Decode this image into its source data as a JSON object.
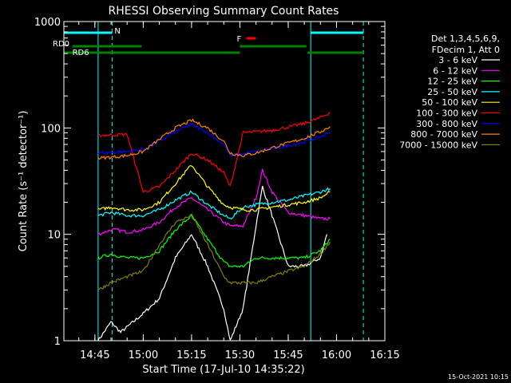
{
  "chart_data": {
    "type": "line",
    "title": "RHESSI Observing Summary Count Rates",
    "xlabel": "Start Time (17-Jul-10 14:35:22)",
    "ylabel": "Count Rate (s⁻¹ detector⁻¹)",
    "x_scale": "time",
    "x_range": [
      "14:35:22",
      "16:15:00"
    ],
    "y_scale": "log",
    "ylim": [
      1,
      1000
    ],
    "x_ticks": [
      "14:45",
      "15:00",
      "15:15",
      "15:30",
      "15:45",
      "16:00",
      "16:15"
    ],
    "y_ticks": [
      "1",
      "10",
      "100",
      "1000"
    ],
    "legend_header": [
      "Det 1,3,4,5,6,9,",
      "FDecim 1, Att 0"
    ],
    "legend_position": "right",
    "grid": false,
    "footer_date": "15-Oct-2021 10:15",
    "series": [
      {
        "name": "3 - 6 keV",
        "color": "#ffffff",
        "points": [
          [
            "14:45:30",
            null
          ],
          [
            "14:46:00",
            1
          ],
          [
            "14:50",
            1.5
          ],
          [
            "14:53",
            1.2
          ],
          [
            "15:00",
            1.8
          ],
          [
            "15:05",
            2.5
          ],
          [
            "15:10",
            6
          ],
          [
            "15:15",
            10
          ],
          [
            "15:20",
            5
          ],
          [
            "15:25",
            2
          ],
          [
            "15:27",
            1
          ],
          [
            "15:31",
            2
          ],
          [
            "15:35",
            12
          ],
          [
            "15:37",
            28
          ],
          [
            "15:40",
            15
          ],
          [
            "15:45",
            5
          ],
          [
            "15:50",
            5
          ],
          [
            "15:55",
            6
          ],
          [
            "15:57",
            10
          ]
        ]
      },
      {
        "name": "6 - 12 keV",
        "color": "#ff00ff",
        "points": [
          [
            "14:46:00",
            10
          ],
          [
            "14:50",
            11
          ],
          [
            "14:52",
            11
          ],
          [
            "14:55",
            10.5
          ],
          [
            "15:00",
            11
          ],
          [
            "15:05",
            13
          ],
          [
            "15:10",
            18
          ],
          [
            "15:15",
            22
          ],
          [
            "15:20",
            17
          ],
          [
            "15:25",
            13
          ],
          [
            "15:27",
            12
          ],
          [
            "15:31",
            12
          ],
          [
            "15:35",
            22
          ],
          [
            "15:37",
            40
          ],
          [
            "15:40",
            25
          ],
          [
            "15:45",
            16
          ],
          [
            "15:50",
            15
          ],
          [
            "15:55",
            14
          ],
          [
            "15:58",
            14
          ]
        ]
      },
      {
        "name": "12 - 25 keV",
        "color": "#00ff00",
        "points": [
          [
            "14:46:00",
            6
          ],
          [
            "14:50",
            6.5
          ],
          [
            "14:55",
            6
          ],
          [
            "15:00",
            6
          ],
          [
            "15:05",
            7
          ],
          [
            "15:10",
            11
          ],
          [
            "15:15",
            15
          ],
          [
            "15:20",
            9
          ],
          [
            "15:25",
            5.5
          ],
          [
            "15:27",
            5
          ],
          [
            "15:31",
            5
          ],
          [
            "15:35",
            6
          ],
          [
            "15:40",
            6
          ],
          [
            "15:45",
            6
          ],
          [
            "15:50",
            6
          ],
          [
            "15:55",
            7
          ],
          [
            "15:58",
            9
          ]
        ]
      },
      {
        "name": "25 - 50 keV",
        "color": "#00ffff",
        "points": [
          [
            "14:46:00",
            15
          ],
          [
            "14:50",
            16
          ],
          [
            "14:55",
            15
          ],
          [
            "15:00",
            15
          ],
          [
            "15:05",
            17
          ],
          [
            "15:10",
            21
          ],
          [
            "15:15",
            25
          ],
          [
            "15:20",
            19
          ],
          [
            "15:25",
            15
          ],
          [
            "15:27",
            14
          ],
          [
            "15:31",
            18
          ],
          [
            "15:35",
            19
          ],
          [
            "15:40",
            20
          ],
          [
            "15:45",
            21
          ],
          [
            "15:50",
            23
          ],
          [
            "15:55",
            25
          ],
          [
            "15:58",
            27
          ]
        ]
      },
      {
        "name": "50 - 100 keV",
        "color": "#ffff00",
        "points": [
          [
            "14:46:00",
            17
          ],
          [
            "14:50",
            18
          ],
          [
            "14:55",
            17
          ],
          [
            "15:00",
            17
          ],
          [
            "15:05",
            20
          ],
          [
            "15:10",
            30
          ],
          [
            "15:15",
            45
          ],
          [
            "15:20",
            28
          ],
          [
            "15:25",
            19
          ],
          [
            "15:27",
            18
          ],
          [
            "15:31",
            17
          ],
          [
            "15:35",
            17
          ],
          [
            "15:40",
            18
          ],
          [
            "15:45",
            19
          ],
          [
            "15:50",
            20
          ],
          [
            "15:55",
            22
          ],
          [
            "15:58",
            25
          ]
        ]
      },
      {
        "name": "100 - 300 keV",
        "color": "#ff0000",
        "points": [
          [
            "14:46:00",
            85
          ],
          [
            "14:50",
            86
          ],
          [
            "14:55",
            87
          ],
          [
            "15:00",
            25
          ],
          [
            "15:05",
            28
          ],
          [
            "15:10",
            40
          ],
          [
            "15:15",
            58
          ],
          [
            "15:20",
            50
          ],
          [
            "15:25",
            38
          ],
          [
            "15:27",
            28
          ],
          [
            "15:31",
            90
          ],
          [
            "15:35",
            92
          ],
          [
            "15:40",
            95
          ],
          [
            "15:45",
            102
          ],
          [
            "15:50",
            110
          ],
          [
            "15:55",
            125
          ],
          [
            "15:58",
            140
          ]
        ]
      },
      {
        "name": "300 - 800 keV",
        "color": "#0000ff",
        "points": [
          [
            "14:46:00",
            58
          ],
          [
            "14:50",
            59
          ],
          [
            "14:55",
            60
          ],
          [
            "15:00",
            63
          ],
          [
            "15:05",
            75
          ],
          [
            "15:10",
            92
          ],
          [
            "15:15",
            108
          ],
          [
            "15:20",
            90
          ],
          [
            "15:25",
            70
          ],
          [
            "15:27",
            55
          ],
          [
            "15:31",
            57
          ],
          [
            "15:35",
            60
          ],
          [
            "15:40",
            64
          ],
          [
            "15:45",
            68
          ],
          [
            "15:50",
            74
          ],
          [
            "15:55",
            82
          ],
          [
            "15:58",
            92
          ]
        ]
      },
      {
        "name": "800 - 7000 keV",
        "color": "#ff8000",
        "points": [
          [
            "14:46:00",
            52
          ],
          [
            "14:50",
            53
          ],
          [
            "14:55",
            55
          ],
          [
            "15:00",
            60
          ],
          [
            "15:05",
            78
          ],
          [
            "15:10",
            100
          ],
          [
            "15:15",
            118
          ],
          [
            "15:20",
            100
          ],
          [
            "15:25",
            75
          ],
          [
            "15:27",
            58
          ],
          [
            "15:31",
            55
          ],
          [
            "15:35",
            58
          ],
          [
            "15:40",
            65
          ],
          [
            "15:45",
            72
          ],
          [
            "15:50",
            80
          ],
          [
            "15:55",
            92
          ],
          [
            "15:58",
            103
          ]
        ]
      },
      {
        "name": "7000 - 15000 keV",
        "color": "#808000",
        "points": [
          [
            "14:46:00",
            3
          ],
          [
            "14:50",
            3.5
          ],
          [
            "14:55",
            4
          ],
          [
            "15:00",
            4.5
          ],
          [
            "15:05",
            8
          ],
          [
            "15:10",
            13
          ],
          [
            "15:15",
            15
          ],
          [
            "15:20",
            8
          ],
          [
            "15:25",
            4
          ],
          [
            "15:27",
            3.5
          ],
          [
            "15:31",
            3.5
          ],
          [
            "15:35",
            3.5
          ],
          [
            "15:40",
            4
          ],
          [
            "15:45",
            4.5
          ],
          [
            "15:50",
            5
          ],
          [
            "15:55",
            6.5
          ],
          [
            "15:58",
            8.5
          ]
        ]
      }
    ],
    "vertical_markers": [
      {
        "time": "14:46:00",
        "color": "#00ffff",
        "style": "solid"
      },
      {
        "time": "14:50:20",
        "color": "#00ffff",
        "style": "dashed"
      },
      {
        "time": "15:52:00",
        "color": "#00ffff",
        "style": "solid"
      },
      {
        "time": "16:08:20",
        "color": "#00ffff",
        "style": "dashed"
      }
    ],
    "flag_bars": [
      {
        "label": "N",
        "color": "#00ffff",
        "segments": [
          [
            "14:35:22",
            "14:50:20"
          ],
          [
            "15:52:00",
            "16:08:20"
          ]
        ]
      },
      {
        "label": "F",
        "color": "#ff0000",
        "segments": [
          [
            "15:32:00",
            "15:35:00"
          ]
        ]
      },
      {
        "label": "RD0",
        "color": "#008000",
        "segments": [
          [
            "14:38:00",
            "14:59:30"
          ],
          [
            "15:30:00",
            "15:50:40"
          ]
        ]
      },
      {
        "label": "RD6",
        "color": "#008000",
        "segments": [
          [
            "14:35:22",
            "14:59:30"
          ],
          [
            "14:59:30",
            "15:30:00"
          ],
          [
            "15:51:00",
            "16:08:20"
          ]
        ]
      }
    ]
  }
}
